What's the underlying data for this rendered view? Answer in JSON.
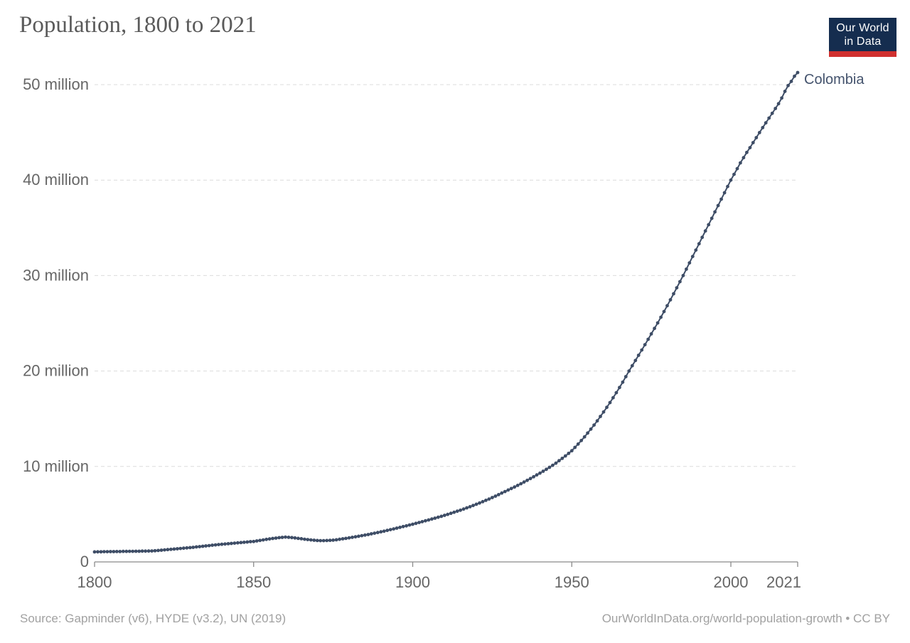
{
  "header": {
    "title": "Population, 1800 to 2021",
    "logo": {
      "line1": "Our World",
      "line2": "in Data",
      "bg_color": "#152d4f",
      "accent_color": "#d0302f"
    }
  },
  "footer": {
    "source": "Source: Gapminder (v6), HYDE (v3.2), UN (2019)",
    "attribution": "OurWorldInData.org/world-population-growth • CC BY"
  },
  "chart_data": {
    "type": "line",
    "title": "Population, 1800 to 2021",
    "entity_label": "Colombia",
    "unit": "people (millions)",
    "xlim": [
      1800,
      2021
    ],
    "ylim": [
      0,
      52
    ],
    "grid": "horizontal dashed",
    "legend_position": "end-of-line label",
    "line_color": "#3e4d66",
    "label_color": "#44536d",
    "grid_color": "#dcdcdc",
    "axis_color": "#8b8b8b",
    "tick_label_color": "#666666",
    "marker": "circle",
    "x_ticks": [
      1800,
      1850,
      1900,
      1950,
      2000,
      2021
    ],
    "y_ticks": [
      {
        "value": 0,
        "label": "0"
      },
      {
        "value": 10,
        "label": "10 million"
      },
      {
        "value": 20,
        "label": "20 million"
      },
      {
        "value": 30,
        "label": "30 million"
      },
      {
        "value": 40,
        "label": "40 million"
      },
      {
        "value": 50,
        "label": "50 million"
      }
    ],
    "series": [
      {
        "name": "Colombia",
        "start_year": 1800,
        "end_year": 2021,
        "values_millions": [
          1.05,
          1.06,
          1.06,
          1.07,
          1.07,
          1.08,
          1.08,
          1.09,
          1.09,
          1.1,
          1.1,
          1.11,
          1.11,
          1.12,
          1.12,
          1.13,
          1.13,
          1.14,
          1.15,
          1.17,
          1.2,
          1.23,
          1.26,
          1.29,
          1.32,
          1.35,
          1.38,
          1.41,
          1.44,
          1.47,
          1.5,
          1.53,
          1.57,
          1.6,
          1.64,
          1.68,
          1.71,
          1.75,
          1.78,
          1.82,
          1.85,
          1.88,
          1.91,
          1.94,
          1.97,
          2.0,
          2.03,
          2.06,
          2.09,
          2.12,
          2.14,
          2.2,
          2.25,
          2.3,
          2.36,
          2.41,
          2.46,
          2.5,
          2.54,
          2.57,
          2.6,
          2.58,
          2.55,
          2.51,
          2.47,
          2.43,
          2.38,
          2.34,
          2.3,
          2.27,
          2.24,
          2.23,
          2.23,
          2.24,
          2.26,
          2.28,
          2.32,
          2.37,
          2.42,
          2.47,
          2.52,
          2.58,
          2.63,
          2.69,
          2.75,
          2.81,
          2.87,
          2.94,
          3.01,
          3.08,
          3.15,
          3.22,
          3.3,
          3.38,
          3.46,
          3.54,
          3.62,
          3.7,
          3.78,
          3.87,
          3.95,
          4.04,
          4.13,
          4.22,
          4.31,
          4.4,
          4.49,
          4.58,
          4.68,
          4.78,
          4.88,
          4.98,
          5.09,
          5.2,
          5.31,
          5.42,
          5.54,
          5.66,
          5.78,
          5.91,
          6.04,
          6.17,
          6.31,
          6.45,
          6.59,
          6.74,
          6.89,
          7.05,
          7.21,
          7.37,
          7.53,
          7.69,
          7.85,
          8.02,
          8.19,
          8.37,
          8.55,
          8.73,
          8.92,
          9.11,
          9.3,
          9.5,
          9.7,
          9.91,
          10.12,
          10.34,
          10.6,
          10.85,
          11.1,
          11.37,
          11.65,
          12.0,
          12.35,
          12.72,
          13.1,
          13.5,
          13.91,
          14.34,
          14.78,
          15.24,
          15.71,
          16.19,
          16.69,
          17.2,
          17.73,
          18.27,
          18.83,
          19.41,
          20.0,
          20.55,
          21.1,
          21.65,
          22.2,
          22.76,
          23.32,
          23.89,
          24.46,
          25.04,
          25.63,
          26.23,
          26.84,
          27.46,
          28.09,
          28.72,
          29.36,
          30.0,
          30.67,
          31.33,
          32.0,
          32.67,
          33.33,
          34.0,
          34.67,
          35.33,
          36.0,
          36.67,
          37.33,
          38.0,
          38.67,
          39.33,
          40.0,
          40.6,
          41.2,
          41.8,
          42.35,
          42.9,
          43.4,
          43.93,
          44.45,
          44.98,
          45.5,
          46.0,
          46.5,
          47.0,
          47.5,
          48.0,
          48.6,
          49.3,
          49.9,
          50.34,
          50.88,
          51.27
        ]
      }
    ]
  }
}
